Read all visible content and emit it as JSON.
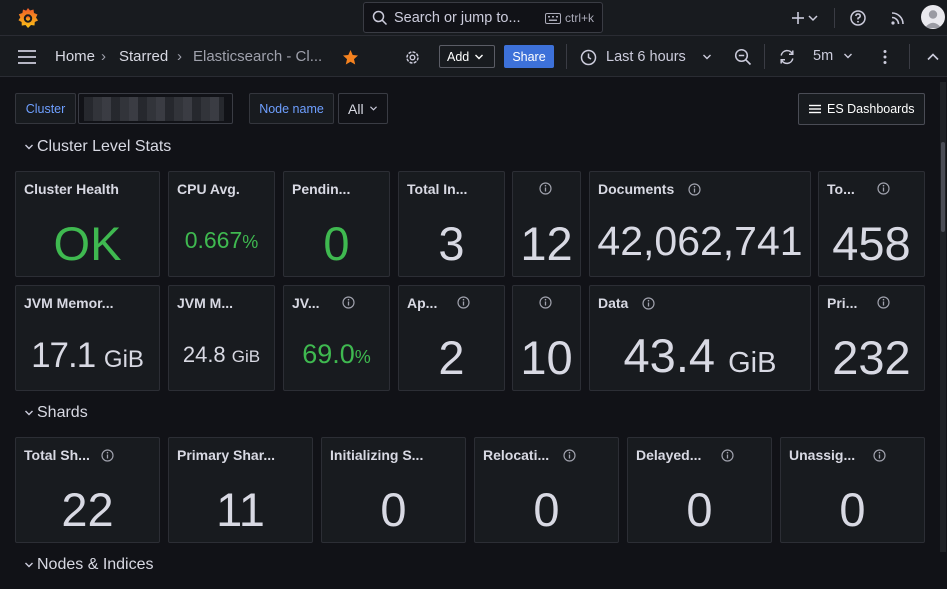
{
  "topbar": {
    "search_placeholder": "Search or jump to...",
    "search_shortcut": "ctrl+k"
  },
  "breadcrumb": {
    "home": "Home",
    "starred": "Starred",
    "dashboard": "Elasticsearch - Cl..."
  },
  "toolbar": {
    "add_label": "Add",
    "share_label": "Share",
    "time_range": "Last 6 hours",
    "refresh_interval": "5m"
  },
  "variables": {
    "cluster_label": "Cluster",
    "node_label": "Node name",
    "node_value": "All",
    "es_dashboards": "ES Dashboards"
  },
  "rows": {
    "cluster_level": "Cluster Level Stats",
    "shards": "Shards",
    "nodes_indices": "Nodes & Indices"
  },
  "cluster_panels": {
    "health": {
      "title": "Cluster Health",
      "value": "OK"
    },
    "cpu": {
      "title": "CPU Avg.",
      "value": "0.667",
      "unit": "%"
    },
    "pending": {
      "title": "Pendin...",
      "value": "0"
    },
    "total_in": {
      "title": "Total In...",
      "value": "3"
    },
    "untitled1": {
      "title": "",
      "value": "12"
    },
    "documents": {
      "title": "Documents",
      "value": "42,062,741"
    },
    "to": {
      "title": "To...",
      "value": "458"
    },
    "jvm_memory": {
      "title": "JVM Memor...",
      "value": "17.1",
      "unit": "GiB"
    },
    "jvm_m": {
      "title": "JVM M...",
      "value": "24.8",
      "unit": "GiB"
    },
    "jv": {
      "title": "JV...",
      "value": "69.0",
      "unit": "%"
    },
    "ap": {
      "title": "Ap...",
      "value": "2"
    },
    "untitled2": {
      "title": "",
      "value": "10"
    },
    "data": {
      "title": "Data",
      "value": "43.4",
      "unit": "GiB"
    },
    "pri": {
      "title": "Pri...",
      "value": "232"
    }
  },
  "shard_panels": [
    {
      "title": "Total Sh...",
      "value": "22"
    },
    {
      "title": "Primary Shar...",
      "value": "11"
    },
    {
      "title": "Initializing S...",
      "value": "0"
    },
    {
      "title": "Relocati...",
      "value": "0"
    },
    {
      "title": "Delayed...",
      "value": "0"
    },
    {
      "title": "Unassig...",
      "value": "0"
    }
  ],
  "colors": {
    "ok_green": "#3fb950",
    "accent_blue": "#3d71d9",
    "star_orange": "#f5821f"
  }
}
